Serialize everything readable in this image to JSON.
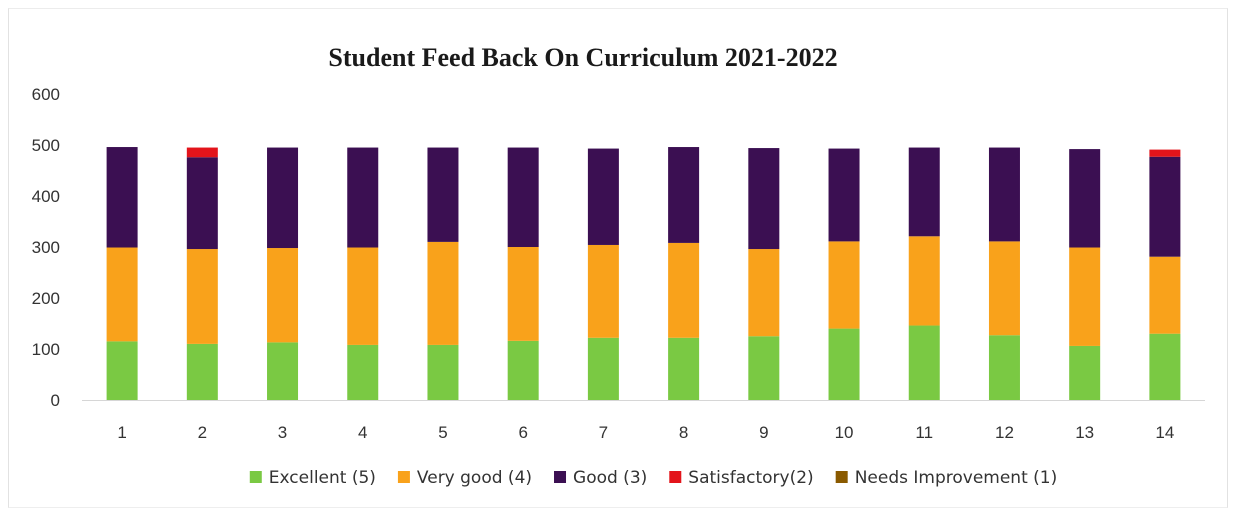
{
  "chart_data": {
    "type": "bar",
    "stacked": true,
    "title": "Student Feed Back On Curriculum 2021-2022",
    "xlabel": "",
    "ylabel": "",
    "ylim": [
      0,
      600
    ],
    "yticks": [
      0,
      100,
      200,
      300,
      400,
      500,
      600
    ],
    "grid": false,
    "legend_position": "bottom",
    "categories": [
      "1",
      "2",
      "3",
      "4",
      "5",
      "6",
      "7",
      "8",
      "9",
      "10",
      "11",
      "12",
      "13",
      "14"
    ],
    "series": [
      {
        "name": "Excellent (5)",
        "color": "#7ac943",
        "values": [
          115,
          110,
          113,
          108,
          108,
          116,
          122,
          122,
          125,
          140,
          146,
          127,
          106,
          130
        ]
      },
      {
        "name": "Very good (4)",
        "color": "#f9a21b",
        "values": [
          184,
          186,
          185,
          191,
          202,
          184,
          182,
          186,
          171,
          171,
          175,
          184,
          193,
          151
        ]
      },
      {
        "name": "Good (3)",
        "color": "#3b0f52",
        "values": [
          197,
          180,
          197,
          196,
          185,
          195,
          189,
          188,
          198,
          182,
          174,
          184,
          193,
          196
        ]
      },
      {
        "name": "Satisfactory(2)",
        "color": "#e3141b",
        "values": [
          0,
          19,
          0,
          0,
          0,
          0,
          0,
          0,
          0,
          0,
          0,
          0,
          0,
          14
        ]
      },
      {
        "name": "Needs Improvement (1)",
        "color": "#8a5a00",
        "values": [
          0,
          0,
          0,
          0,
          0,
          0,
          0,
          0,
          0,
          0,
          0,
          0,
          0,
          0
        ]
      }
    ]
  }
}
